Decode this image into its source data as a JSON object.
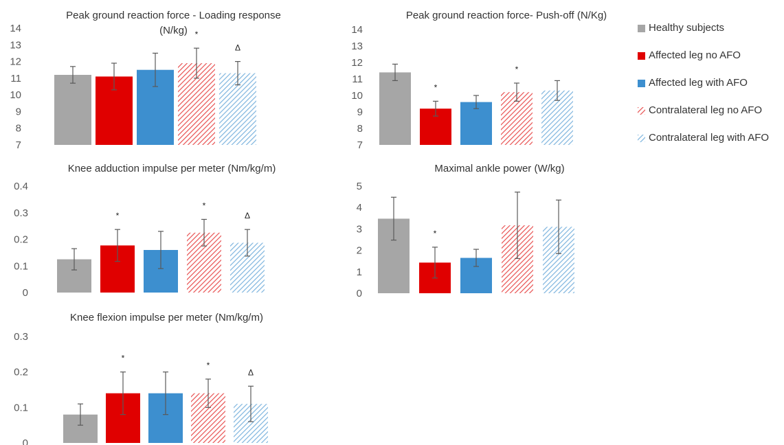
{
  "chart_data": [
    {
      "type": "bar",
      "title": "Peak ground reaction force - Loading response (N/kg)",
      "ylim": [
        7,
        14
      ],
      "yticks": [
        "7",
        "8",
        "9",
        "10",
        "11",
        "12",
        "13",
        "14"
      ],
      "series": [
        {
          "name": "Healthy subjects",
          "value": 11.2,
          "error": 0.5,
          "mark": ""
        },
        {
          "name": "Affected leg no AFO",
          "value": 11.1,
          "error": 0.8,
          "mark": ""
        },
        {
          "name": "Affected leg with AFO",
          "value": 11.5,
          "error": 1.0,
          "mark": ""
        },
        {
          "name": "Contralateral leg no AFO",
          "value": 11.9,
          "error": 0.9,
          "mark": "*"
        },
        {
          "name": "Contralateral leg with AFO",
          "value": 11.3,
          "error": 0.7,
          "mark": "Δ"
        }
      ]
    },
    {
      "type": "bar",
      "title": "Peak ground reaction force- Push-off (N/Kg)",
      "ylim": [
        7,
        14
      ],
      "yticks": [
        "7",
        "8",
        "9",
        "10",
        "11",
        "12",
        "13",
        "14"
      ],
      "series": [
        {
          "name": "Healthy subjects",
          "value": 11.4,
          "error": 0.5,
          "mark": ""
        },
        {
          "name": "Affected leg no AFO",
          "value": 9.2,
          "error": 0.45,
          "mark": "*"
        },
        {
          "name": "Affected leg with AFO",
          "value": 9.6,
          "error": 0.4,
          "mark": ""
        },
        {
          "name": "Contralateral leg no AFO",
          "value": 10.2,
          "error": 0.55,
          "mark": "*"
        },
        {
          "name": "Contralateral leg with AFO",
          "value": 10.3,
          "error": 0.6,
          "mark": ""
        }
      ]
    },
    {
      "type": "bar",
      "title": "Knee adduction impulse per meter (Nm/kg/m)",
      "ylim": [
        0,
        0.4
      ],
      "yticks": [
        "0",
        "0.1",
        "0.2",
        "0.3",
        "0.4"
      ],
      "series": [
        {
          "name": "Healthy subjects",
          "value": 0.125,
          "error": 0.04,
          "mark": ""
        },
        {
          "name": "Affected leg no AFO",
          "value": 0.177,
          "error": 0.06,
          "mark": "*"
        },
        {
          "name": "Affected leg with AFO",
          "value": 0.16,
          "error": 0.07,
          "mark": ""
        },
        {
          "name": "Contralateral leg no AFO",
          "value": 0.225,
          "error": 0.05,
          "mark": "*"
        },
        {
          "name": "Contralateral leg with AFO",
          "value": 0.187,
          "error": 0.05,
          "mark": "Δ"
        }
      ]
    },
    {
      "type": "bar",
      "title": "Maximal ankle power (W/kg)",
      "ylim": [
        0,
        5
      ],
      "yticks": [
        "0",
        "1",
        "2",
        "3",
        "4",
        "5"
      ],
      "series": [
        {
          "name": "Healthy subjects",
          "value": 3.48,
          "error": 1.0,
          "mark": ""
        },
        {
          "name": "Affected leg no AFO",
          "value": 1.43,
          "error": 0.72,
          "mark": "*"
        },
        {
          "name": "Affected leg with AFO",
          "value": 1.65,
          "error": 0.4,
          "mark": ""
        },
        {
          "name": "Contralateral leg no AFO",
          "value": 3.17,
          "error": 1.55,
          "mark": ""
        },
        {
          "name": "Contralateral leg with AFO",
          "value": 3.1,
          "error": 1.25,
          "mark": ""
        }
      ]
    },
    {
      "type": "bar",
      "title": "Knee flexion impulse per meter (Nm/kg/m)",
      "ylim": [
        0,
        0.3
      ],
      "yticks": [
        "0",
        "0.1",
        "0.2",
        "0.3"
      ],
      "series": [
        {
          "name": "Healthy subjects",
          "value": 0.08,
          "error": 0.03,
          "mark": ""
        },
        {
          "name": "Affected leg no AFO",
          "value": 0.14,
          "error": 0.06,
          "mark": "*"
        },
        {
          "name": "Affected leg with AFO",
          "value": 0.14,
          "error": 0.06,
          "mark": ""
        },
        {
          "name": "Contralateral leg no AFO",
          "value": 0.14,
          "error": 0.04,
          "mark": "*"
        },
        {
          "name": "Contralateral leg with AFO",
          "value": 0.11,
          "error": 0.05,
          "mark": "Δ"
        }
      ]
    }
  ],
  "legend": {
    "position": "right",
    "items": [
      {
        "label": "Healthy subjects",
        "color": "#a6a6a6",
        "pattern": "solid"
      },
      {
        "label": "Affected leg no AFO",
        "color": "#e00000",
        "pattern": "solid"
      },
      {
        "label": "Affected leg with AFO",
        "color": "#3d8fcf",
        "pattern": "solid"
      },
      {
        "label": "Contralateral leg no AFO",
        "color": "#e85050",
        "pattern": "hatched"
      },
      {
        "label": "Contralateral leg with AFO",
        "color": "#7db4de",
        "pattern": "hatched"
      }
    ]
  }
}
